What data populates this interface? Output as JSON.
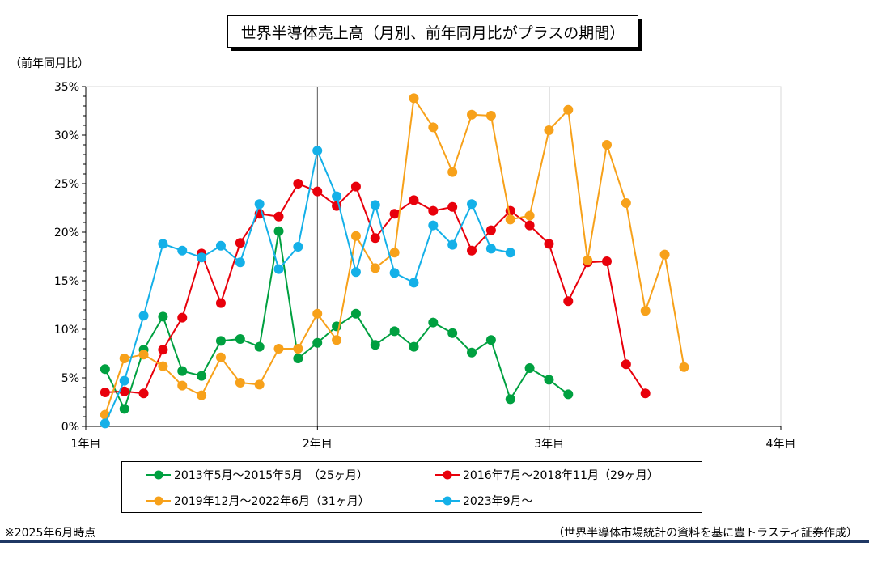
{
  "title": "世界半導体売上高（月別、前年同月比がプラスの期間）",
  "footnote": "※2025年6月時点",
  "source": "（世界半導体市場統計の資料を基に豊トラスティ証券作成）",
  "chart_data": {
    "type": "line",
    "title": "世界半導体売上高（月別、前年同月比がプラスの期間）",
    "ylabel": "（前年同月比）",
    "xlabel": "",
    "xlim": [
      1,
      4
    ],
    "ylim": [
      0,
      35
    ],
    "x_ticks": [
      1,
      2,
      3,
      4
    ],
    "x_tick_labels": [
      "1年目",
      "2年目",
      "3年目",
      "4年目"
    ],
    "y_ticks": [
      0,
      5,
      10,
      15,
      20,
      25,
      30,
      35
    ],
    "y_tick_labels": [
      "0%",
      "5%",
      "10%",
      "15%",
      "20%",
      "25%",
      "30%",
      "35%"
    ],
    "vertical_gridlines_at": [
      2,
      3
    ],
    "legend_position": "bottom",
    "month_step": 0.0833,
    "series": [
      {
        "name": "2013年5月～2015年5月　（25ヶ月）",
        "color": "#00a040",
        "values": [
          5.9,
          1.8,
          7.9,
          11.3,
          5.7,
          5.2,
          8.8,
          9.0,
          8.2,
          20.1,
          7.0,
          8.6,
          10.3,
          11.6,
          8.4,
          9.8,
          8.2,
          10.7,
          9.6,
          7.6,
          8.9,
          2.8,
          6.0,
          4.8,
          3.3
        ]
      },
      {
        "name": "2016年7月～2018年11月（29ヶ月）",
        "color": "#e8000b",
        "values": [
          3.5,
          3.6,
          3.4,
          7.9,
          11.2,
          17.8,
          12.7,
          18.9,
          21.9,
          21.6,
          25.0,
          24.2,
          22.7,
          24.7,
          19.4,
          21.9,
          23.3,
          22.2,
          22.6,
          18.1,
          20.2,
          22.2,
          20.7,
          18.8,
          12.9,
          16.9,
          17.0,
          6.4,
          3.4
        ]
      },
      {
        "name": "2019年12月～2022年6月（31ヶ月）",
        "color": "#f7a11a",
        "values": [
          1.2,
          7.0,
          7.4,
          6.2,
          4.2,
          3.2,
          7.1,
          4.5,
          4.3,
          8.0,
          8.0,
          11.6,
          8.9,
          19.6,
          16.3,
          17.9,
          33.8,
          30.8,
          26.2,
          32.1,
          32.0,
          21.3,
          21.7,
          30.5,
          32.6,
          17.1,
          29.0,
          23.0,
          11.9,
          17.7,
          6.1
        ]
      },
      {
        "name": "2023年9月～",
        "color": "#14b0e8",
        "values": [
          0.3,
          4.7,
          11.4,
          18.8,
          18.1,
          17.4,
          18.6,
          16.9,
          22.9,
          16.2,
          18.5,
          28.4,
          23.7,
          15.9,
          22.8,
          15.8,
          14.8,
          20.7,
          18.7,
          22.9,
          18.3,
          17.9
        ]
      }
    ]
  }
}
